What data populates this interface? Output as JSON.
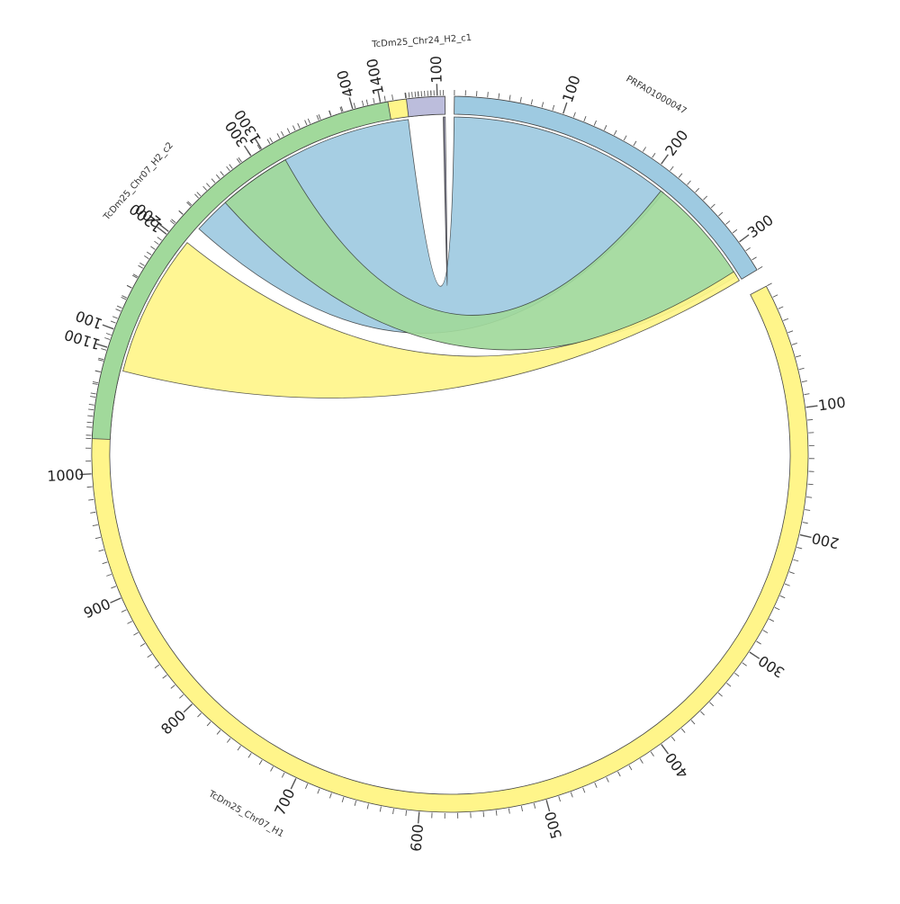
{
  "diagram": {
    "type": "circos",
    "sectors": [
      {
        "id": "prfa",
        "label": "PRFA01000047",
        "length": 330,
        "start_deg": 0.7,
        "end_deg": 59,
        "color": "#9ECAE1",
        "major_ticks": [
          100,
          200,
          300
        ]
      },
      {
        "id": "chr07_h1",
        "label": "TcDm25_Chr07_H1",
        "length": 1440,
        "start_deg": 62,
        "end_deg": 357,
        "color": "#FFF58A",
        "major_ticks": [
          100,
          200,
          300,
          400,
          500,
          600,
          700,
          800,
          900,
          1000,
          1100,
          1200,
          1300,
          1400
        ]
      },
      {
        "id": "chr07_h2",
        "label": "TcDm25_Chr07_H2_c2",
        "length": 432,
        "start_deg": 272.5,
        "end_deg": 350,
        "color": "#A1D99B",
        "major_ticks": [
          100,
          200,
          300,
          400
        ]
      },
      {
        "id": "chr24",
        "label": "TcDm25_Chr24_H2_c1",
        "length": 125,
        "start_deg": 353,
        "end_deg": 359.2,
        "color": "#BCBDDC",
        "major_ticks": [
          100
        ]
      }
    ],
    "links": [
      {
        "from": "prfa",
        "from_range": [
          0,
          218
        ],
        "to": "chr07_h1",
        "to_range": [
          1220,
          1420
        ],
        "color": "#9ECAE1"
      },
      {
        "from": "prfa",
        "from_range": [
          215,
          325
        ],
        "to": "chr07_h2",
        "to_range": [
          255,
          325
        ],
        "color": "#A1D99B"
      },
      {
        "from": "prfa",
        "from_range": [
          320,
          330
        ],
        "to": "chr07_h1",
        "to_range": [
          1085,
          1205
        ],
        "color": "#FFF58A"
      },
      {
        "from": "chr24",
        "from_range": [
          118,
          125
        ],
        "to": "chr24",
        "to_range": [
          120,
          125
        ],
        "color": "#BCBDDC"
      }
    ]
  }
}
